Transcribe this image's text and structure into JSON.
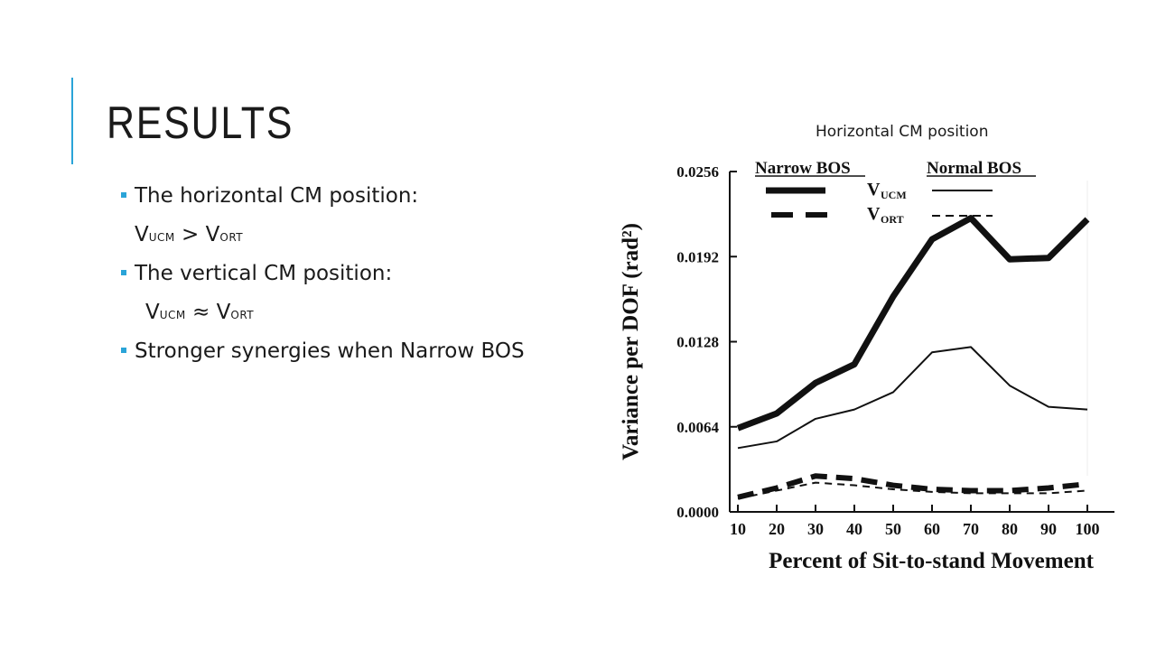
{
  "slide": {
    "title": "RESULTS",
    "bullets": [
      {
        "text": "The horizontal CM position:"
      },
      {
        "base1": "V",
        "sub1": "UCM",
        "op": " > ",
        "base2": "V",
        "sub2": "ORT"
      },
      {
        "text": "The vertical CM position:"
      },
      {
        "base1": "V",
        "sub1": "UCM",
        "op": " ≈ ",
        "base2": "V",
        "sub2": "ORT"
      },
      {
        "text": "Stronger synergies when Narrow BOS"
      }
    ],
    "figure_caption": "Horizontal CM position"
  },
  "colors": {
    "accent": "#2aa4d8",
    "ink": "#111111"
  },
  "chart_data": {
    "type": "line",
    "xlabel": "Percent of Sit-to-stand Movement",
    "ylabel": "Variance per DOF (rad²)",
    "x": [
      10,
      20,
      30,
      40,
      50,
      60,
      70,
      80,
      90,
      100
    ],
    "x_ticks": [
      "10",
      "20",
      "30",
      "40",
      "50",
      "60",
      "70",
      "80",
      "90",
      "100"
    ],
    "y_ticks": [
      "0.0000",
      "0.0064",
      "0.0128",
      "0.0192",
      "0.0256"
    ],
    "ylim": [
      0,
      0.0256
    ],
    "legend": {
      "group_headers": [
        "Narrow BOS",
        "Normal BOS"
      ],
      "row_labels": [
        {
          "base": "V",
          "sub": "UCM"
        },
        {
          "base": "V",
          "sub": "ORT"
        }
      ]
    },
    "series": [
      {
        "group": "Narrow BOS",
        "measure": "UCM",
        "style": "thick-solid",
        "values": [
          0.0063,
          0.0074,
          0.0097,
          0.0111,
          0.0162,
          0.0205,
          0.0221,
          0.019,
          0.0191,
          0.022
        ]
      },
      {
        "group": "Normal BOS",
        "measure": "UCM",
        "style": "thin-solid",
        "values": [
          0.0048,
          0.0053,
          0.007,
          0.0077,
          0.009,
          0.012,
          0.0124,
          0.0095,
          0.0079,
          0.0077
        ]
      },
      {
        "group": "Narrow BOS",
        "measure": "ORT",
        "style": "thick-dashed",
        "values": [
          0.0011,
          0.0018,
          0.0027,
          0.0025,
          0.002,
          0.0017,
          0.0016,
          0.0016,
          0.0018,
          0.0021
        ]
      },
      {
        "group": "Normal BOS",
        "measure": "ORT",
        "style": "thin-dashed",
        "values": [
          0.001,
          0.0016,
          0.0022,
          0.002,
          0.0017,
          0.0015,
          0.0014,
          0.0014,
          0.0014,
          0.0016
        ]
      }
    ]
  }
}
